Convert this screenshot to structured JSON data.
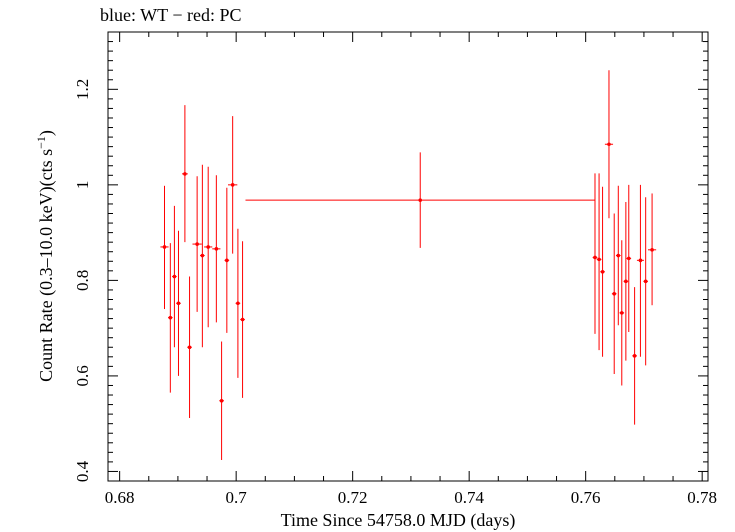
{
  "chart_data": {
    "type": "scatter",
    "title": "blue: WT − red: PC",
    "xlabel": "Time Since 54758.0 MJD (days)",
    "ylabel_main": "Count Rate (0.3–10.0 keV)(cts s",
    "ylabel_sup": "−1",
    "ylabel_tail": ")",
    "xlim": [
      0.678,
      0.781
    ],
    "ylim": [
      0.38,
      1.32
    ],
    "x_ticks": [
      0.68,
      0.7,
      0.72,
      0.74,
      0.76,
      0.78
    ],
    "x_tick_labels": [
      "0.68",
      "0.7",
      "0.72",
      "0.74",
      "0.76",
      "0.78"
    ],
    "y_ticks": [
      0.4,
      0.6,
      0.8,
      1.0,
      1.2
    ],
    "y_tick_labels": [
      "0.4",
      "0.6",
      "0.8",
      "1",
      "1.2"
    ],
    "series": [
      {
        "color": "#ff0000",
        "points": [
          {
            "x": 0.6877,
            "y": 0.87,
            "xerr": 0.0007,
            "ylo": 0.74,
            "yhi": 0.998
          },
          {
            "x": 0.6887,
            "y": 0.722,
            "xerr": 0.0004,
            "ylo": 0.565,
            "yhi": 0.878
          },
          {
            "x": 0.6894,
            "y": 0.808,
            "xerr": 0.0004,
            "ylo": 0.66,
            "yhi": 0.956
          },
          {
            "x": 0.6901,
            "y": 0.752,
            "xerr": 0.0004,
            "ylo": 0.6,
            "yhi": 0.904
          },
          {
            "x": 0.6912,
            "y": 1.023,
            "xerr": 0.0005,
            "ylo": 0.88,
            "yhi": 1.167
          },
          {
            "x": 0.692,
            "y": 0.66,
            "xerr": 0.0004,
            "ylo": 0.512,
            "yhi": 0.808
          },
          {
            "x": 0.6933,
            "y": 0.876,
            "xerr": 0.0008,
            "ylo": 0.734,
            "yhi": 1.018
          },
          {
            "x": 0.6942,
            "y": 0.852,
            "xerr": 0.0004,
            "ylo": 0.66,
            "yhi": 1.042
          },
          {
            "x": 0.6952,
            "y": 0.87,
            "xerr": 0.0007,
            "ylo": 0.702,
            "yhi": 1.038
          },
          {
            "x": 0.6966,
            "y": 0.866,
            "xerr": 0.0007,
            "ylo": 0.712,
            "yhi": 1.02
          },
          {
            "x": 0.6975,
            "y": 0.548,
            "xerr": 0.0004,
            "ylo": 0.424,
            "yhi": 0.672
          },
          {
            "x": 0.6984,
            "y": 0.842,
            "xerr": 0.0004,
            "ylo": 0.69,
            "yhi": 0.994
          },
          {
            "x": 0.6994,
            "y": 1.0,
            "xerr": 0.0008,
            "ylo": 0.856,
            "yhi": 1.144
          },
          {
            "x": 0.7003,
            "y": 0.752,
            "xerr": 0.0004,
            "ylo": 0.596,
            "yhi": 0.908
          },
          {
            "x": 0.7011,
            "y": 0.718,
            "xerr": 0.0004,
            "ylo": 0.554,
            "yhi": 0.882
          },
          {
            "x": 0.7316,
            "y": 0.968,
            "xerr": 0.03,
            "ylo": 0.868,
            "yhi": 1.068
          },
          {
            "x": 0.7616,
            "y": 0.848,
            "xerr": 0.0004,
            "ylo": 0.688,
            "yhi": 1.024
          },
          {
            "x": 0.7623,
            "y": 0.844,
            "xerr": 0.0004,
            "ylo": 0.654,
            "yhi": 1.024
          },
          {
            "x": 0.7629,
            "y": 0.818,
            "xerr": 0.0004,
            "ylo": 0.64,
            "yhi": 0.996
          },
          {
            "x": 0.764,
            "y": 1.085,
            "xerr": 0.0007,
            "ylo": 0.93,
            "yhi": 1.24
          },
          {
            "x": 0.7649,
            "y": 0.772,
            "xerr": 0.0004,
            "ylo": 0.604,
            "yhi": 0.94
          },
          {
            "x": 0.7656,
            "y": 0.852,
            "xerr": 0.0004,
            "ylo": 0.706,
            "yhi": 0.998
          },
          {
            "x": 0.7662,
            "y": 0.732,
            "xerr": 0.0004,
            "ylo": 0.58,
            "yhi": 0.884
          },
          {
            "x": 0.7669,
            "y": 0.798,
            "xerr": 0.0004,
            "ylo": 0.632,
            "yhi": 0.964
          },
          {
            "x": 0.7674,
            "y": 0.846,
            "xerr": 0.0004,
            "ylo": 0.692,
            "yhi": 1.0
          },
          {
            "x": 0.7684,
            "y": 0.642,
            "xerr": 0.0004,
            "ylo": 0.498,
            "yhi": 0.786
          },
          {
            "x": 0.7694,
            "y": 0.842,
            "xerr": 0.0006,
            "ylo": 0.64,
            "yhi": 1.0
          },
          {
            "x": 0.7703,
            "y": 0.798,
            "xerr": 0.0004,
            "ylo": 0.622,
            "yhi": 0.974
          },
          {
            "x": 0.7714,
            "y": 0.864,
            "xerr": 0.0007,
            "ylo": 0.748,
            "yhi": 0.982
          }
        ]
      }
    ]
  }
}
